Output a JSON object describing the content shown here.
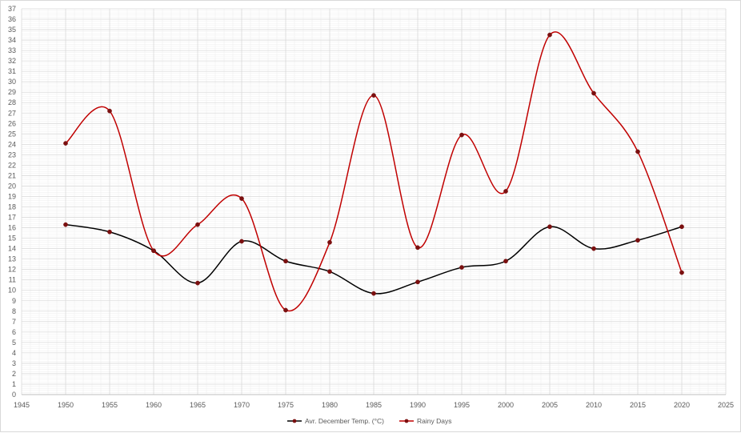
{
  "chart_data": {
    "type": "line",
    "smooth": true,
    "xlim": [
      1945,
      2025
    ],
    "ylim": [
      0,
      37
    ],
    "x_ticks": [
      1945,
      1950,
      1955,
      1960,
      1965,
      1970,
      1975,
      1980,
      1985,
      1990,
      1995,
      2000,
      2005,
      2010,
      2015,
      2020,
      2025
    ],
    "x_tick_labels": [
      "1945",
      "1950",
      "1955",
      "1960",
      "1965",
      "1970",
      "1975",
      "1980",
      "1985",
      "1990",
      "1995",
      "2000",
      "2005",
      "2010",
      "2015",
      "2020",
      "2025"
    ],
    "y_ticks": [
      0,
      1,
      2,
      3,
      4,
      5,
      6,
      7,
      8,
      9,
      10,
      11,
      12,
      13,
      14,
      15,
      16,
      17,
      18,
      19,
      20,
      21,
      22,
      23,
      24,
      25,
      26,
      27,
      28,
      29,
      30,
      31,
      32,
      33,
      34,
      35,
      36,
      37
    ],
    "y_tick_labels": [
      "0",
      "1",
      "2",
      "3",
      "4",
      "5",
      "6",
      "7",
      "8",
      "9",
      "10",
      "11",
      "12",
      "13",
      "14",
      "15",
      "16",
      "17",
      "18",
      "19",
      "20",
      "21",
      "22",
      "23",
      "24",
      "25",
      "26",
      "27",
      "28",
      "29",
      "30",
      "31",
      "32",
      "33",
      "34",
      "35",
      "36",
      "37"
    ],
    "grid": {
      "major": true,
      "minor": true
    },
    "legend_position": "bottom",
    "series": [
      {
        "name": "Avr. December Temp. (°C)",
        "color": "#000000",
        "marker_color": "#7b1010",
        "x": [
          1950,
          1955,
          1960,
          1965,
          1970,
          1975,
          1980,
          1985,
          1990,
          1995,
          2000,
          2005,
          2010,
          2015,
          2020
        ],
        "y": [
          16.3,
          15.6,
          13.8,
          10.7,
          14.7,
          12.8,
          11.8,
          9.7,
          10.8,
          12.2,
          12.8,
          16.1,
          14.0,
          14.8,
          16.1
        ]
      },
      {
        "name": "Rainy Days",
        "color": "#c00000",
        "marker_color": "#7b1010",
        "x": [
          1950,
          1955,
          1960,
          1965,
          1970,
          1975,
          1980,
          1985,
          1990,
          1995,
          2000,
          2005,
          2010,
          2015,
          2020
        ],
        "y": [
          24.1,
          27.2,
          13.8,
          16.3,
          18.8,
          8.1,
          14.6,
          28.7,
          14.1,
          24.9,
          19.5,
          34.5,
          28.9,
          23.3,
          11.7
        ]
      }
    ]
  }
}
